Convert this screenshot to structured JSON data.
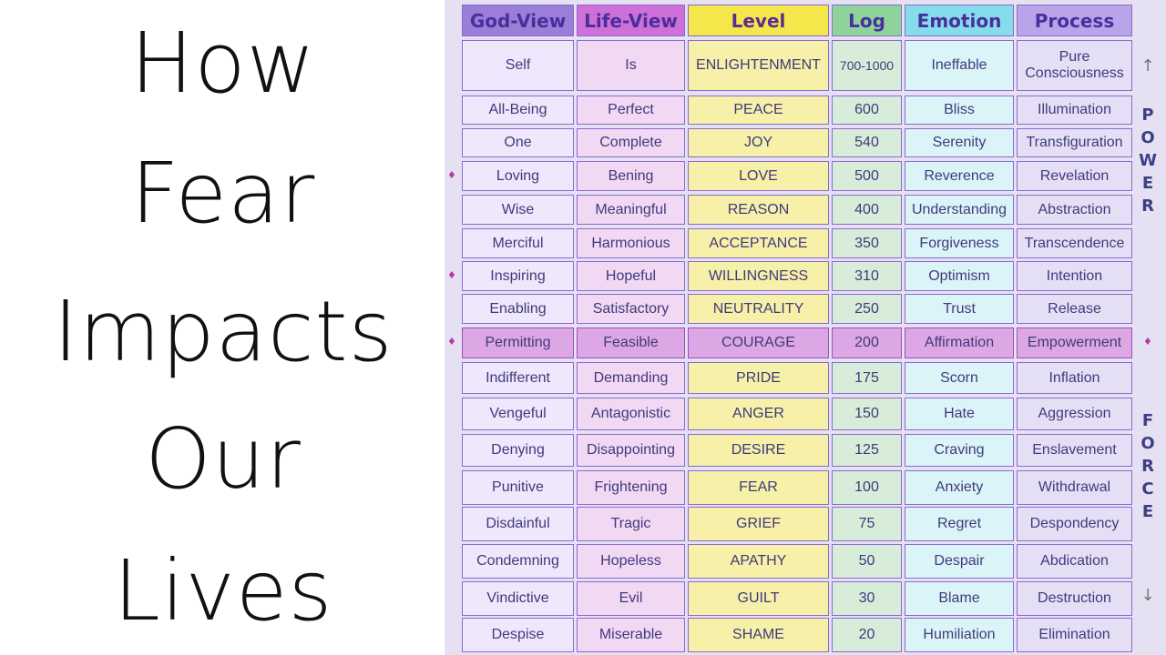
{
  "title_lines": [
    "How",
    "Fear",
    "Impacts",
    "Our",
    "Lives"
  ],
  "headers": [
    "God-View",
    "Life-View",
    "Level",
    "Log",
    "Emotion",
    "Process"
  ],
  "header_colors": [
    "#9b7ed8",
    "#cf6fd8",
    "#f5e64c",
    "#8ed49a",
    "#85dcea",
    "#b9a4ea"
  ],
  "rows": [
    {
      "god": "Self",
      "life": "Is",
      "level": "ENLIGHTENMENT",
      "log": "700-1000",
      "emotion": "Ineffable",
      "process": "Pure Consciousness"
    },
    {
      "god": "All-Being",
      "life": "Perfect",
      "level": "PEACE",
      "log": "600",
      "emotion": "Bliss",
      "process": "Illumination"
    },
    {
      "god": "One",
      "life": "Complete",
      "level": "JOY",
      "log": "540",
      "emotion": "Serenity",
      "process": "Transfiguration"
    },
    {
      "god": "Loving",
      "life": "Bening",
      "level": "LOVE",
      "log": "500",
      "emotion": "Reverence",
      "process": "Revelation"
    },
    {
      "god": "Wise",
      "life": "Meaningful",
      "level": "REASON",
      "log": "400",
      "emotion": "Understanding",
      "process": "Abstraction"
    },
    {
      "god": "Merciful",
      "life": "Harmonious",
      "level": "ACCEPTANCE",
      "log": "350",
      "emotion": "Forgiveness",
      "process": "Transcendence"
    },
    {
      "god": "Inspiring",
      "life": "Hopeful",
      "level": "WILLINGNESS",
      "log": "310",
      "emotion": "Optimism",
      "process": "Intention"
    },
    {
      "god": "Enabling",
      "life": "Satisfactory",
      "level": "NEUTRALITY",
      "log": "250",
      "emotion": "Trust",
      "process": "Release"
    },
    {
      "god": "Permitting",
      "life": "Feasible",
      "level": "COURAGE",
      "log": "200",
      "emotion": "Affirmation",
      "process": "Empowerment"
    },
    {
      "god": "Indifferent",
      "life": "Demanding",
      "level": "PRIDE",
      "log": "175",
      "emotion": "Scorn",
      "process": "Inflation"
    },
    {
      "god": "Vengeful",
      "life": "Antagonistic",
      "level": "ANGER",
      "log": "150",
      "emotion": "Hate",
      "process": "Aggression"
    },
    {
      "god": "Denying",
      "life": "Disappointing",
      "level": "DESIRE",
      "log": "125",
      "emotion": "Craving",
      "process": "Enslavement"
    },
    {
      "god": "Punitive",
      "life": "Frightening",
      "level": "FEAR",
      "log": "100",
      "emotion": "Anxiety",
      "process": "Withdrawal"
    },
    {
      "god": "Disdainful",
      "life": "Tragic",
      "level": "GRIEF",
      "log": "75",
      "emotion": "Regret",
      "process": "Despondency"
    },
    {
      "god": "Condemning",
      "life": "Hopeless",
      "level": "APATHY",
      "log": "50",
      "emotion": "Despair",
      "process": "Abdication"
    },
    {
      "god": "Vindictive",
      "life": "Evil",
      "level": "GUILT",
      "log": "30",
      "emotion": "Blame",
      "process": "Destruction"
    },
    {
      "god": "Despise",
      "life": "Miserable",
      "level": "SHAME",
      "log": "20",
      "emotion": "Humiliation",
      "process": "Elimination"
    }
  ],
  "diamond_rows": [
    3,
    6,
    8
  ],
  "right_diamond_rows": [
    8
  ],
  "side_power": [
    "P",
    "O",
    "W",
    "E",
    "R"
  ],
  "side_force": [
    "F",
    "O",
    "R",
    "C",
    "E"
  ],
  "arrow_up": "↑",
  "arrow_down": "↓",
  "diamond_glyph": "♦"
}
